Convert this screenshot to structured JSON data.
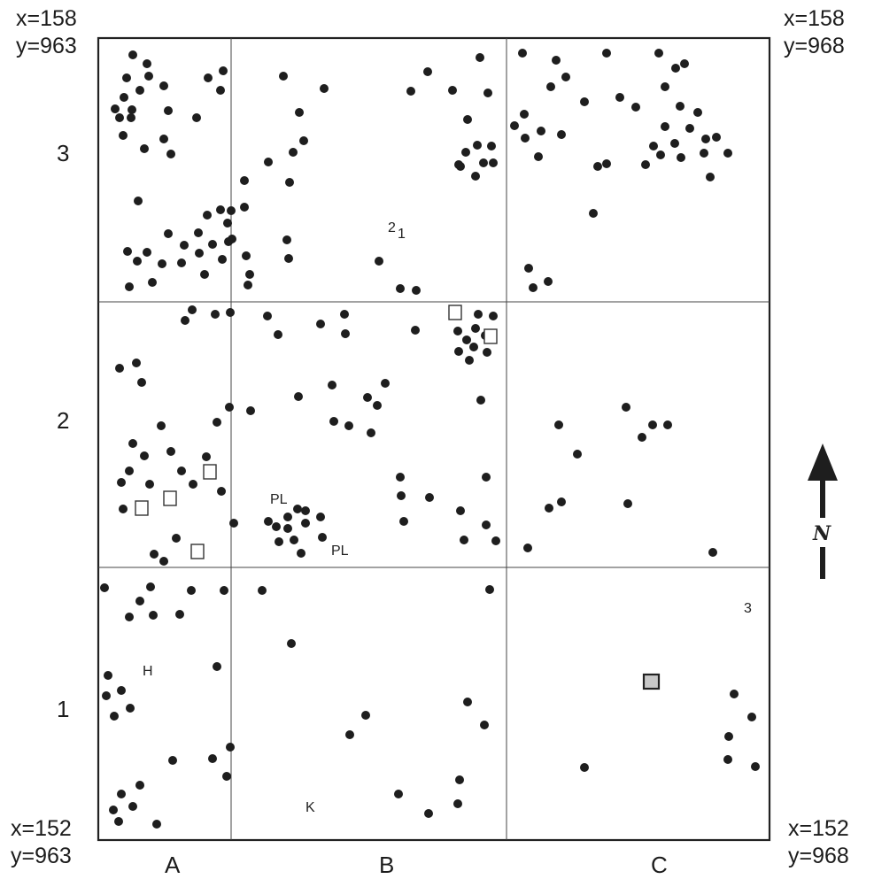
{
  "corners": {
    "top_left": {
      "x": "x=158",
      "y": "y=963"
    },
    "top_right": {
      "x": "x=158",
      "y": "y=968"
    },
    "bottom_left": {
      "x": "x=152",
      "y": "y=963"
    },
    "bottom_right": {
      "x": "x=152",
      "y": "y=968"
    }
  },
  "rows": [
    "3",
    "2",
    "1"
  ],
  "columns": [
    "A",
    "B",
    "C"
  ],
  "north_label": "N",
  "annotations": {
    "H": "H",
    "K": "K",
    "PL": "PL",
    "three": "3",
    "two": "2",
    "one": "1"
  }
}
